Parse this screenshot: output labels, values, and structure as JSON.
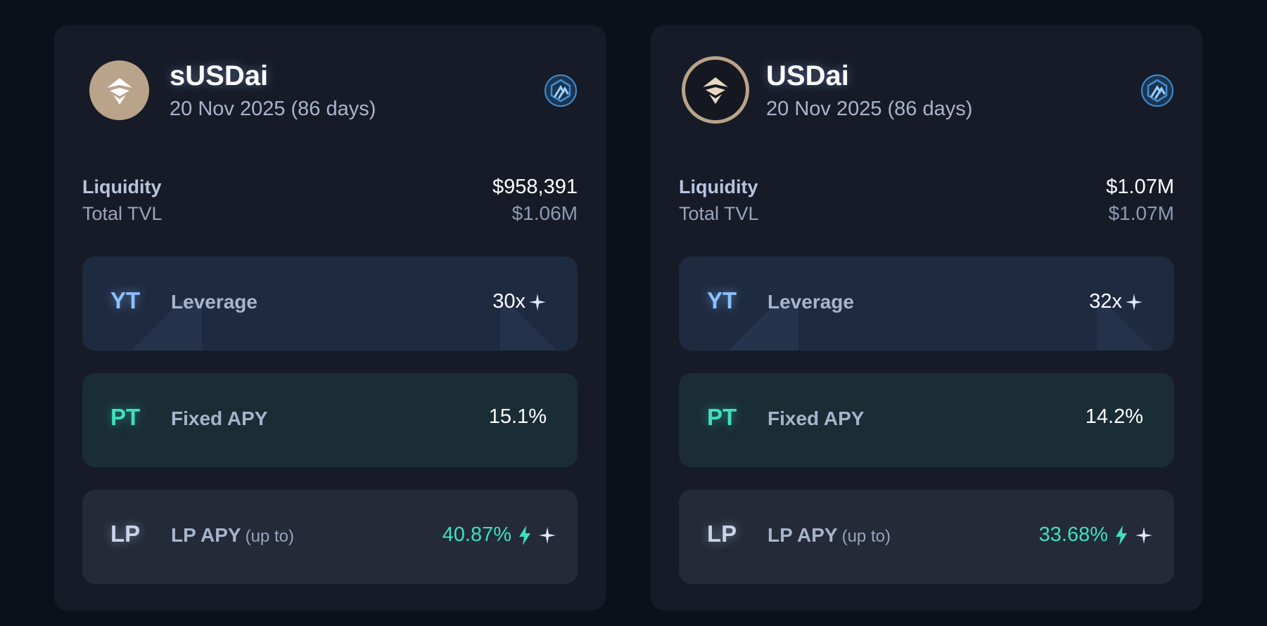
{
  "cards": [
    {
      "name": "sUSDai",
      "date": "20 Nov 2025 (86 days)",
      "logo_style": "filled",
      "liquidity_label": "Liquidity",
      "liquidity_value": "$958,391",
      "tvl_label": "Total TVL",
      "tvl_value": "$1.06M",
      "yt": {
        "tag": "YT",
        "label": "Leverage",
        "value": "30x"
      },
      "pt": {
        "tag": "PT",
        "label": "Fixed APY",
        "value": "15.1%"
      },
      "lp": {
        "tag": "LP",
        "label": "LP APY",
        "sub": "(up to)",
        "value": "40.87%"
      }
    },
    {
      "name": "USDai",
      "date": "20 Nov 2025 (86 days)",
      "logo_style": "ring",
      "liquidity_label": "Liquidity",
      "liquidity_value": "$1.07M",
      "tvl_label": "Total TVL",
      "tvl_value": "$1.07M",
      "yt": {
        "tag": "YT",
        "label": "Leverage",
        "value": "32x"
      },
      "pt": {
        "tag": "PT",
        "label": "Fixed APY",
        "value": "14.2%"
      },
      "lp": {
        "tag": "LP",
        "label": "LP APY",
        "sub": "(up to)",
        "value": "33.68%"
      }
    }
  ],
  "icons": {
    "asset_logo": "usdai-logo-icon",
    "chain_badge": "arbitrum-icon",
    "sparkle": "sparkle-icon",
    "bolt": "lightning-icon"
  },
  "colors": {
    "background": "#0c101b",
    "card": "#161b27",
    "yt_accent": "#8cc0ff",
    "pt_accent": "#3ee0c0",
    "lp_value": "#3ee0c0",
    "logo_tan": "#b9a38a"
  }
}
